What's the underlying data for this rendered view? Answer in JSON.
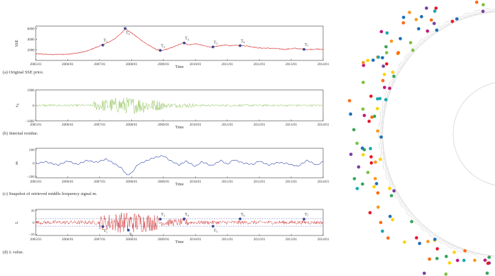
{
  "chart_data": [
    {
      "type": "line",
      "caption": "(a) Original SSE price.",
      "ylabel": "SSE",
      "xlabel": "Time",
      "x_ticks": [
        "2005/01",
        "2006/01",
        "2007/01",
        "2008/01",
        "2009/01",
        "2010/01",
        "2011/01",
        "2012/01",
        "2013/01",
        "2014/01"
      ],
      "y_ticks": [
        "2000",
        "4000",
        "6000"
      ],
      "ylim": [
        0,
        6500
      ],
      "series_color": "#d42020",
      "series": [
        {
          "x": [
            2005.0,
            2005.5,
            2006.0,
            2006.3,
            2006.6,
            2006.9,
            2007.1,
            2007.3,
            2007.5,
            2007.7,
            2007.8,
            2008.0,
            2008.2,
            2008.5,
            2008.8,
            2008.95,
            2009.2,
            2009.5,
            2009.6,
            2009.8,
            2010.0,
            2010.3,
            2010.5,
            2010.9,
            2011.1,
            2011.3,
            2011.6,
            2012.0,
            2012.4,
            2012.8,
            2013.1,
            2013.5,
            2013.8,
            2014.0
          ],
          "y": [
            1250,
            1100,
            1180,
            1400,
            1750,
            2500,
            2950,
            3500,
            4200,
            5300,
            6000,
            5200,
            4300,
            3000,
            2000,
            1850,
            2300,
            3000,
            3400,
            2950,
            3150,
            2750,
            2500,
            2900,
            2800,
            2900,
            2750,
            2350,
            2300,
            2100,
            2300,
            2050,
            2150,
            2050
          ]
        }
      ],
      "markers": [
        {
          "label": "T",
          "sub": "1",
          "x": 2007.1,
          "y": 2900
        },
        {
          "label": "T",
          "sub": "2",
          "x": 2007.8,
          "y": 6050
        },
        {
          "label": "T",
          "sub": "3",
          "x": 2008.9,
          "y": 1900
        },
        {
          "label": "T",
          "sub": "4",
          "x": 2009.65,
          "y": 3300
        },
        {
          "label": "T",
          "sub": "5",
          "x": 2010.55,
          "y": 2550
        },
        {
          "label": "T",
          "sub": "6",
          "x": 2011.4,
          "y": 2800
        },
        {
          "label": "T",
          "sub": "7",
          "x": 2013.4,
          "y": 2100
        }
      ]
    },
    {
      "type": "line",
      "caption": "(b) Internal residue.",
      "ylabel": "ε",
      "ylabel_sub": "II",
      "xlabel": "Time",
      "x_ticks": [
        "2005/01",
        "2006/01",
        "2007/01",
        "2008/01",
        "2009/01",
        "2010/01",
        "2011/01",
        "2012/01",
        "2013/01",
        "2014/01"
      ],
      "y_ticks": [
        "1000",
        "0",
        "−1000"
      ],
      "ylim": [
        -1000,
        1000
      ],
      "series_color": "#7ab83a"
    },
    {
      "type": "line",
      "caption": "(c) Snapshot of retrieved middle frequency signal m.",
      "ylabel": "m",
      "xlabel": "Time",
      "x_ticks": [
        "2005/01",
        "2006/01",
        "2007/01",
        "2008/01",
        "2009/01",
        "2010/01",
        "2011/01",
        "2012/01",
        "2013/01",
        "2014/01"
      ],
      "y_ticks": [
        "100",
        "0",
        "−100"
      ],
      "ylim": [
        -110,
        110
      ],
      "series_color": "#2a3fa8",
      "series": [
        {
          "x": [
            2005.0,
            2005.3,
            2005.7,
            2006.0,
            2006.3,
            2006.6,
            2006.9,
            2007.2,
            2007.5,
            2007.7,
            2007.85,
            2008.0,
            2008.2,
            2008.4,
            2008.7,
            2009.0,
            2009.2,
            2009.5,
            2009.7,
            2010.0,
            2010.2,
            2010.5,
            2010.8,
            2011.0,
            2011.2,
            2011.5,
            2011.8,
            2012.0,
            2012.3,
            2012.6,
            2012.9,
            2013.2,
            2013.5,
            2013.8,
            2014.0
          ],
          "y": [
            -5,
            10,
            -15,
            15,
            -10,
            20,
            5,
            30,
            -10,
            -40,
            -90,
            -75,
            -10,
            10,
            40,
            55,
            20,
            -15,
            15,
            -25,
            10,
            -20,
            20,
            -10,
            25,
            0,
            -10,
            15,
            -15,
            5,
            -5,
            -25,
            20,
            -15,
            10
          ]
        }
      ]
    },
    {
      "type": "line",
      "caption": "(d) L value.",
      "ylabel": "L",
      "xlabel": "Time",
      "x_ticks": [
        "2005/01",
        "2006/01",
        "2007/01",
        "2008/01",
        "2009/01",
        "2010/01",
        "2011/01",
        "2012/01",
        "2013/01",
        "2014/01"
      ],
      "y_ticks": [
        "10",
        "0",
        "−10"
      ],
      "ylim": [
        -11,
        11
      ],
      "thresholds": [
        3,
        -3
      ],
      "series_color": "#c81818",
      "markers": [
        {
          "label": "T",
          "sub": "1",
          "x": 2007.1,
          "y": -3.5
        },
        {
          "label": "T",
          "sub": "2",
          "x": 2007.9,
          "y": -6.5
        },
        {
          "label": "T",
          "sub": "3",
          "x": 2008.9,
          "y": 2.8
        },
        {
          "label": "T",
          "sub": "4",
          "x": 2009.65,
          "y": 3.0
        },
        {
          "label": "T",
          "sub": "5",
          "x": 2010.55,
          "y": -3.2
        },
        {
          "label": "T",
          "sub": "6",
          "x": 2011.4,
          "y": 3.0
        },
        {
          "label": "T",
          "sub": "7",
          "x": 2013.4,
          "y": 2.8
        }
      ]
    }
  ],
  "decor": {
    "dot_colors": [
      "#e8192c",
      "#f59a1d",
      "#ffd200",
      "#7cc242",
      "#17a9b3",
      "#1e6fb8",
      "#7b3fa0",
      "#c2187a",
      "#3aa55b",
      "#ff6a13"
    ]
  }
}
